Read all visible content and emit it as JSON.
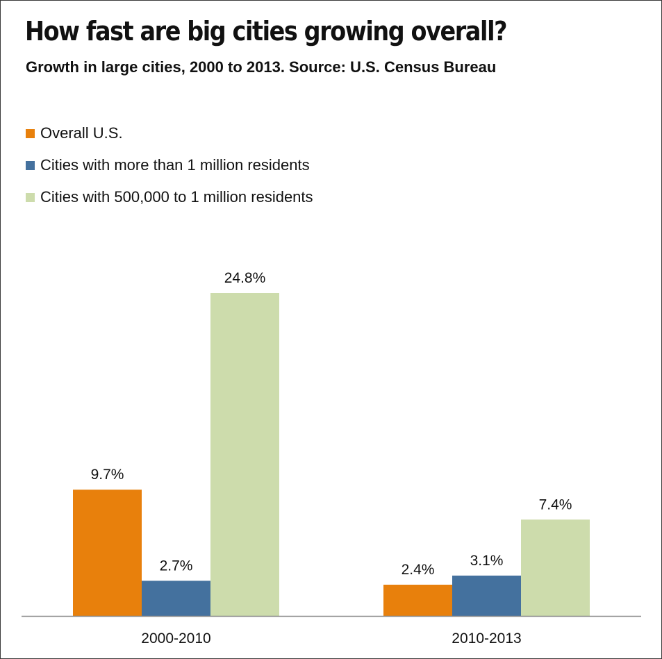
{
  "chart_data": {
    "type": "bar",
    "title": "How fast are big cities growing overall?",
    "subtitle": "Growth in large cities, 2000 to 2013. Source: U.S. Census Bureau",
    "categories": [
      "2000-2010",
      "2010-2013"
    ],
    "series": [
      {
        "name": "Overall U.S.",
        "color": "#e8800c",
        "values": [
          9.7,
          2.4
        ],
        "labels": [
          "9.7%",
          "2.4%"
        ]
      },
      {
        "name": "Cities with more than 1 million residents",
        "color": "#44719e",
        "values": [
          2.7,
          3.1
        ],
        "labels": [
          "2.7%",
          "3.1%"
        ]
      },
      {
        "name": "Cities with 500,000 to 1 million residents",
        "color": "#cddcac",
        "values": [
          24.8,
          7.4
        ],
        "labels": [
          "24.8%",
          "7.4%"
        ]
      }
    ],
    "ylim": [
      0,
      24.8
    ],
    "grid": false,
    "legend_position": "top-left",
    "axis_color": "#8a8a8a"
  }
}
